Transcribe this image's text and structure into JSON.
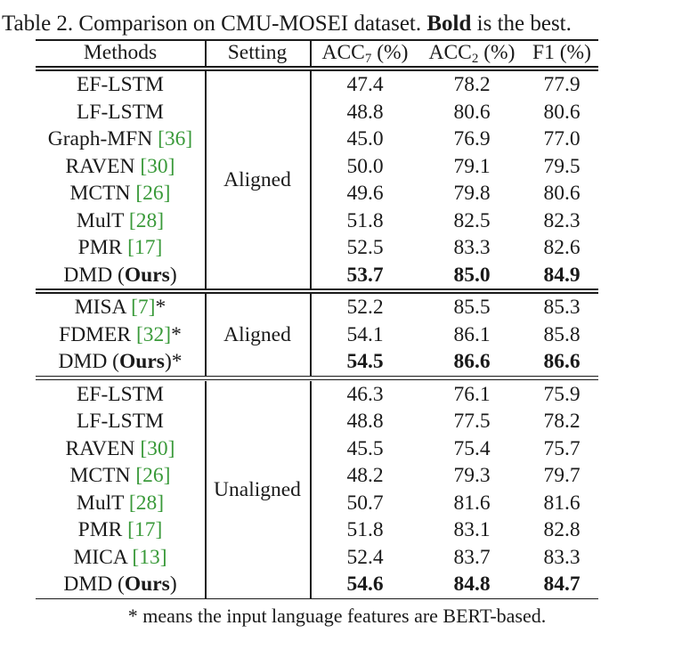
{
  "caption": {
    "prefix": "Table 2. Comparison on CMU-MOSEI dataset. ",
    "bold_word": "Bold",
    "suffix": " is the best."
  },
  "headers": {
    "methods": "Methods",
    "setting": "Setting",
    "acc7_main": "ACC",
    "acc7_sub": "7",
    "acc7_unit": " (%)",
    "acc2_main": "ACC",
    "acc2_sub": "2",
    "acc2_unit": " (%)",
    "f1": "F1 (%)"
  },
  "groups": [
    {
      "setting": "Aligned",
      "rows": [
        {
          "name": "EF-LSTM",
          "ref": "",
          "suffix": "",
          "acc7": "47.4",
          "acc2": "78.2",
          "f1": "77.9",
          "bold": false
        },
        {
          "name": "LF-LSTM",
          "ref": "",
          "suffix": "",
          "acc7": "48.8",
          "acc2": "80.6",
          "f1": "80.6",
          "bold": false
        },
        {
          "name": "Graph-MFN ",
          "ref": "[36]",
          "suffix": "",
          "acc7": "45.0",
          "acc2": "76.9",
          "f1": "77.0",
          "bold": false
        },
        {
          "name": "RAVEN ",
          "ref": "[30]",
          "suffix": "",
          "acc7": "50.0",
          "acc2": "79.1",
          "f1": "79.5",
          "bold": false
        },
        {
          "name": "MCTN ",
          "ref": "[26]",
          "suffix": "",
          "acc7": "49.6",
          "acc2": "79.8",
          "f1": "80.6",
          "bold": false
        },
        {
          "name": "MulT ",
          "ref": "[28]",
          "suffix": "",
          "acc7": "51.8",
          "acc2": "82.5",
          "f1": "82.3",
          "bold": false
        },
        {
          "name": "PMR ",
          "ref": "[17]",
          "suffix": "",
          "acc7": "52.5",
          "acc2": "83.3",
          "f1": "82.6",
          "bold": false
        },
        {
          "name": "DMD (",
          "ours": "Ours",
          "suffix": ")",
          "acc7": "53.7",
          "acc2": "85.0",
          "f1": "84.9",
          "bold": true
        }
      ]
    },
    {
      "setting": "Aligned",
      "rows": [
        {
          "name": "MISA ",
          "ref": "[7]",
          "suffix": "*",
          "acc7": "52.2",
          "acc2": "85.5",
          "f1": "85.3",
          "bold": false
        },
        {
          "name": "FDMER ",
          "ref": "[32]",
          "suffix": "*",
          "acc7": "54.1",
          "acc2": "86.1",
          "f1": "85.8",
          "bold": false
        },
        {
          "name": "DMD (",
          "ours": "Ours",
          "suffix": ")*",
          "acc7": "54.5",
          "acc2": "86.6",
          "f1": "86.6",
          "bold": true
        }
      ]
    },
    {
      "setting": "Unaligned",
      "rows": [
        {
          "name": "EF-LSTM",
          "ref": "",
          "suffix": "",
          "acc7": "46.3",
          "acc2": "76.1",
          "f1": "75.9",
          "bold": false
        },
        {
          "name": "LF-LSTM",
          "ref": "",
          "suffix": "",
          "acc7": "48.8",
          "acc2": "77.5",
          "f1": "78.2",
          "bold": false
        },
        {
          "name": "RAVEN ",
          "ref": "[30]",
          "suffix": "",
          "acc7": "45.5",
          "acc2": "75.4",
          "f1": "75.7",
          "bold": false
        },
        {
          "name": "MCTN ",
          "ref": "[26]",
          "suffix": "",
          "acc7": "48.2",
          "acc2": "79.3",
          "f1": "79.7",
          "bold": false
        },
        {
          "name": "MulT ",
          "ref": "[28]",
          "suffix": "",
          "acc7": "50.7",
          "acc2": "81.6",
          "f1": "81.6",
          "bold": false
        },
        {
          "name": "PMR ",
          "ref": "[17]",
          "suffix": "",
          "acc7": "51.8",
          "acc2": "83.1",
          "f1": "82.8",
          "bold": false
        },
        {
          "name": "MICA ",
          "ref": "[13]",
          "suffix": "",
          "acc7": "52.4",
          "acc2": "83.7",
          "f1": "83.3",
          "bold": false
        },
        {
          "name": "DMD (",
          "ours": "Ours",
          "suffix": ")",
          "acc7": "54.6",
          "acc2": "84.8",
          "f1": "84.7",
          "bold": true
        }
      ]
    }
  ],
  "footnote": "* means the input language features are BERT-based."
}
